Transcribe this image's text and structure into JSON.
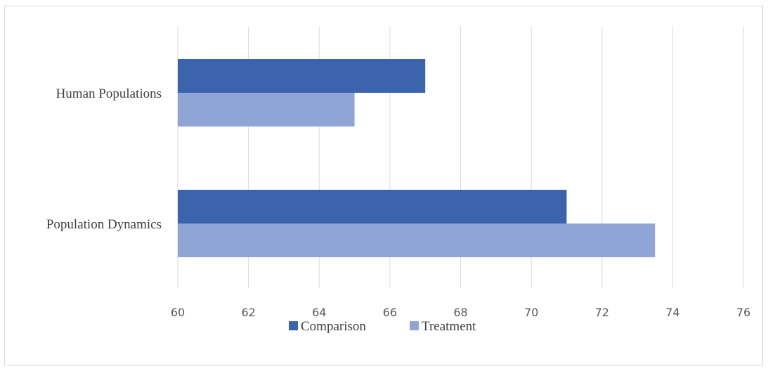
{
  "chart_data": {
    "type": "bar",
    "orientation": "horizontal",
    "categories": [
      "Human Populations",
      "Population Dynamics"
    ],
    "series": [
      {
        "name": "Comparison",
        "color": "#3c64ad",
        "values": [
          67,
          71
        ]
      },
      {
        "name": "Treatment",
        "color": "#8fa5d6",
        "values": [
          65,
          73.5
        ]
      }
    ],
    "xlim": [
      60,
      76
    ],
    "x_ticks": [
      "60",
      "62",
      "64",
      "66",
      "68",
      "70",
      "72",
      "74",
      "76"
    ],
    "grid": "vertical",
    "legend_position": "bottom"
  }
}
